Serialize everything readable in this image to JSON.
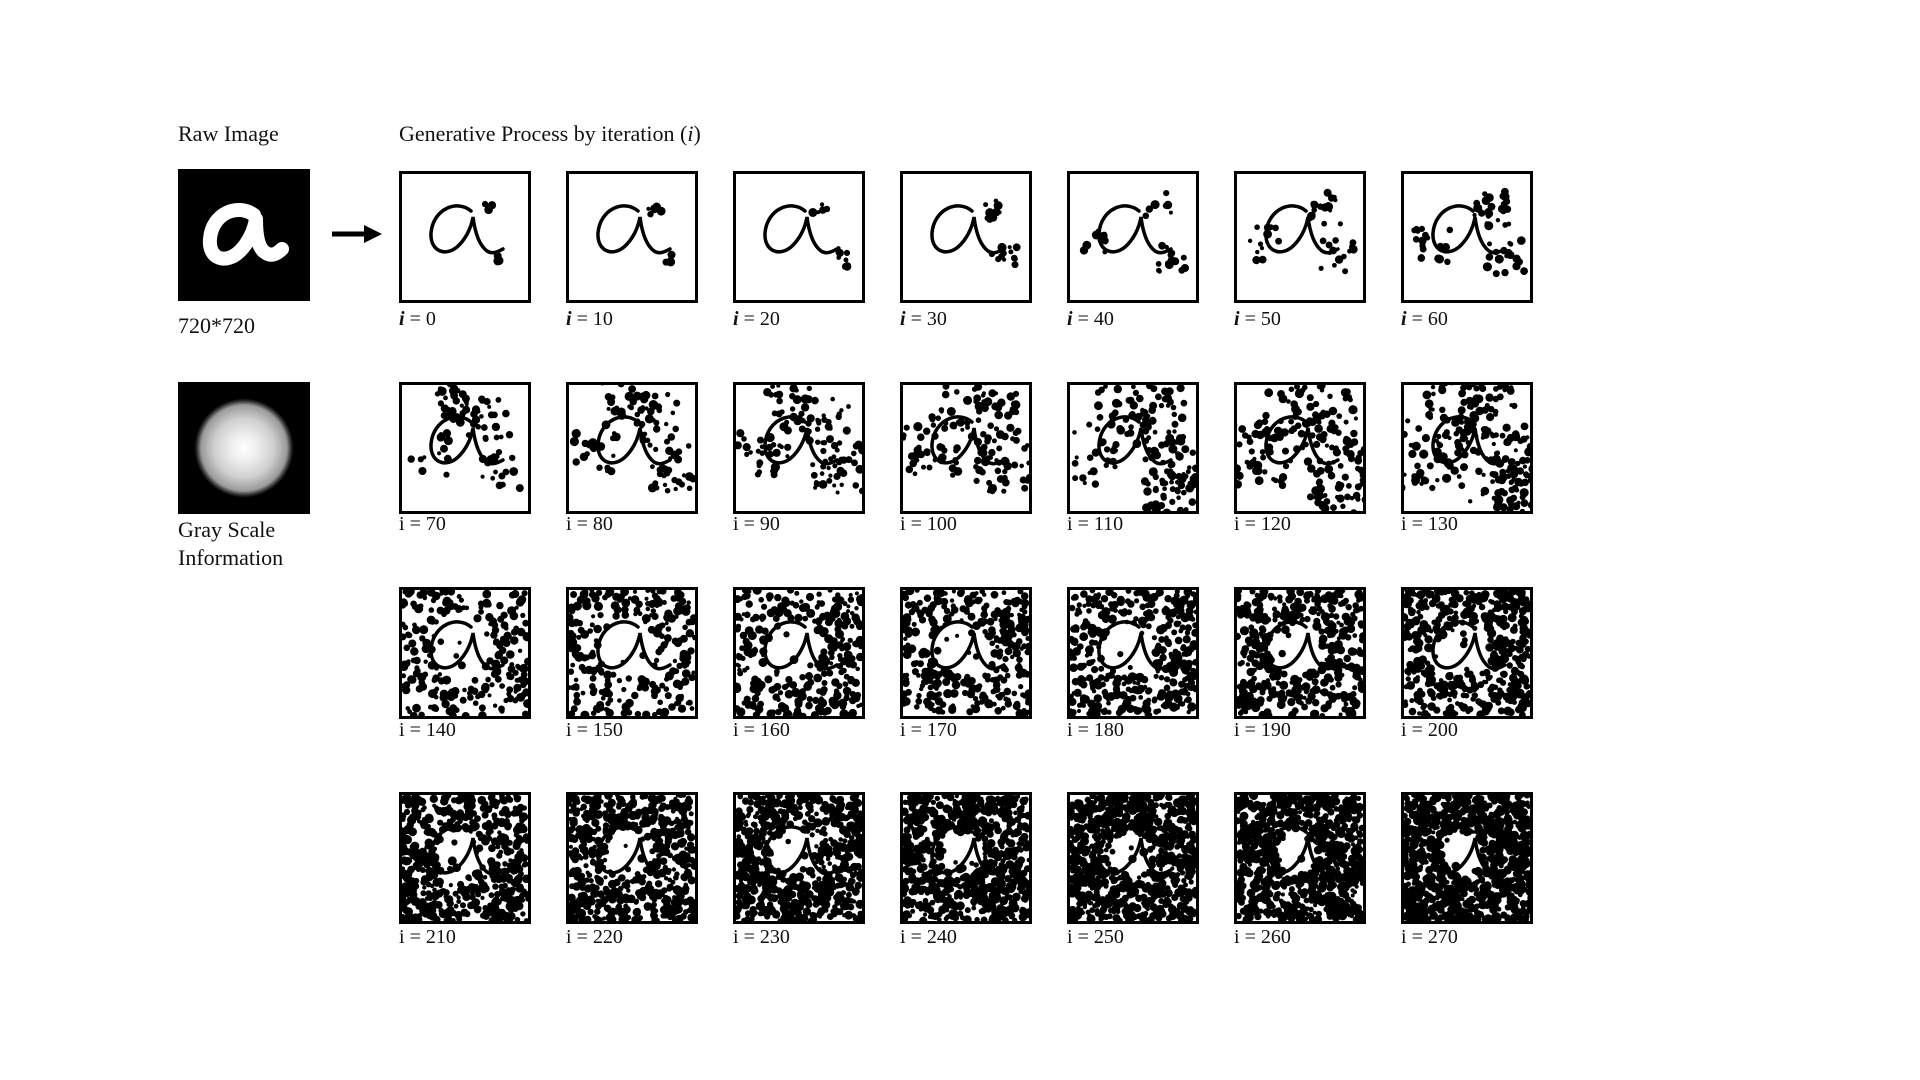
{
  "raw_title": "Raw Image",
  "raw_size": "720*720",
  "gray_label": "Gray Scale\nInformation",
  "gen_title_prefix": "Generative Process by iteration (",
  "gen_title_var": "i",
  "gen_title_suffix": ")",
  "iterations": [
    0,
    10,
    20,
    30,
    40,
    50,
    60,
    70,
    80,
    90,
    100,
    110,
    120,
    130,
    140,
    150,
    160,
    170,
    180,
    190,
    200,
    210,
    220,
    230,
    240,
    250,
    260,
    270
  ],
  "italic_label_var": "i",
  "label_eq": " = "
}
